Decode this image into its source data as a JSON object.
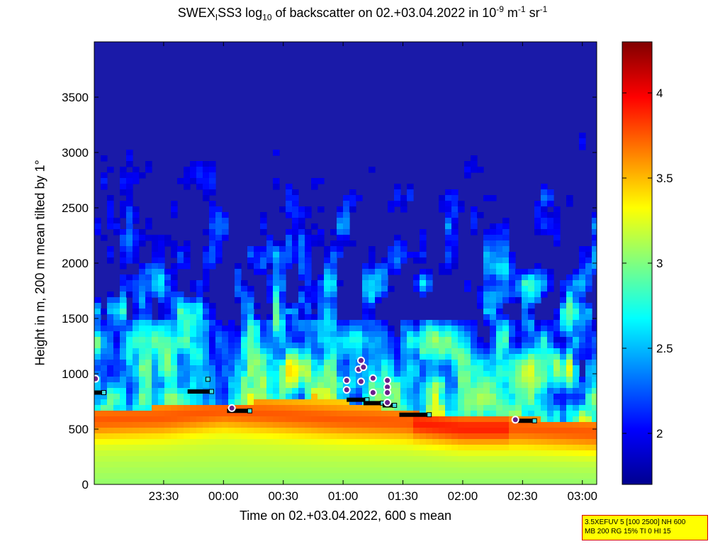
{
  "chart_data": {
    "type": "heatmap",
    "title_parts": [
      "SWEX",
      "I",
      "SS3 log",
      "10",
      " of backscatter on 02.+03.04.2022 in 10",
      "-9",
      " m",
      "-1",
      " sr",
      "-1"
    ],
    "xlabel": "Time on 02.+03.04.2022, 600 s mean",
    "ylabel": "Height in m, 200 m mean tilted by 1°",
    "x_unit": "hours since 02.04.2022 00:00",
    "xlim": [
      22.92,
      27.12
    ],
    "ylim": [
      0,
      4000
    ],
    "x_ticks": [
      {
        "value": 23.5,
        "label": "23:30"
      },
      {
        "value": 24.0,
        "label": "00:00"
      },
      {
        "value": 24.5,
        "label": "00:30"
      },
      {
        "value": 25.0,
        "label": "01:00"
      },
      {
        "value": 25.5,
        "label": "01:30"
      },
      {
        "value": 26.0,
        "label": "02:00"
      },
      {
        "value": 26.5,
        "label": "02:30"
      },
      {
        "value": 27.0,
        "label": "03:00"
      }
    ],
    "y_ticks": [
      {
        "value": 0,
        "label": "0"
      },
      {
        "value": 500,
        "label": "500"
      },
      {
        "value": 1000,
        "label": "1000"
      },
      {
        "value": 1500,
        "label": "1500"
      },
      {
        "value": 2000,
        "label": "2000"
      },
      {
        "value": 2500,
        "label": "2500"
      },
      {
        "value": 3000,
        "label": "3000"
      },
      {
        "value": 3500,
        "label": "3500"
      }
    ],
    "colorbar": {
      "colormap": "jet",
      "clim": [
        1.7,
        4.3
      ],
      "ticks": [
        {
          "value": 2,
          "label": "2"
        },
        {
          "value": 2.5,
          "label": "2.5"
        },
        {
          "value": 3,
          "label": "3"
        },
        {
          "value": 3.5,
          "label": "3.5"
        },
        {
          "value": 4,
          "label": "4"
        }
      ]
    },
    "layers": {
      "aerosol_layer_top_m": [
        [
          22.92,
          650
        ],
        [
          23.5,
          700
        ],
        [
          24.5,
          760
        ],
        [
          25.0,
          760
        ],
        [
          25.5,
          650
        ],
        [
          26.0,
          620
        ],
        [
          26.5,
          600
        ],
        [
          27.12,
          560
        ]
      ],
      "max_backscatter_height_m": [
        [
          22.92,
          580
        ],
        [
          23.5,
          600
        ],
        [
          24.0,
          660
        ],
        [
          25.0,
          580
        ],
        [
          25.5,
          560
        ],
        [
          26.0,
          500
        ],
        [
          26.5,
          500
        ],
        [
          27.12,
          460
        ]
      ]
    },
    "mixing_layer_segments": [
      {
        "x0": 22.92,
        "x1": 23.0,
        "y": 830
      },
      {
        "x0": 23.7,
        "x1": 23.9,
        "y": 840
      },
      {
        "x0": 24.03,
        "x1": 24.22,
        "y": 665
      },
      {
        "x0": 25.03,
        "x1": 25.2,
        "y": 765
      },
      {
        "x0": 25.17,
        "x1": 25.33,
        "y": 735
      },
      {
        "x0": 25.33,
        "x1": 25.43,
        "y": 715
      },
      {
        "x0": 25.47,
        "x1": 25.72,
        "y": 630
      },
      {
        "x0": 26.43,
        "x1": 26.6,
        "y": 575
      }
    ],
    "cloud_points": [
      {
        "x": 22.93,
        "y": 955
      },
      {
        "x": 24.07,
        "y": 690
      },
      {
        "x": 25.03,
        "y": 940
      },
      {
        "x": 25.03,
        "y": 855
      },
      {
        "x": 25.13,
        "y": 1040
      },
      {
        "x": 25.15,
        "y": 1120
      },
      {
        "x": 25.17,
        "y": 1060
      },
      {
        "x": 25.15,
        "y": 930
      },
      {
        "x": 25.25,
        "y": 960
      },
      {
        "x": 25.25,
        "y": 830
      },
      {
        "x": 25.37,
        "y": 940
      },
      {
        "x": 25.37,
        "y": 880
      },
      {
        "x": 25.37,
        "y": 830
      },
      {
        "x": 25.37,
        "y": 740
      },
      {
        "x": 26.44,
        "y": 585
      }
    ],
    "extra_markers": [
      {
        "x": 23.87,
        "y": 950
      }
    ]
  },
  "info_box": {
    "line1": "3.5XEFUV 5 [100 2500] NH 600",
    "line2": "MB 200 RG 15% TI 0 HI 15"
  }
}
